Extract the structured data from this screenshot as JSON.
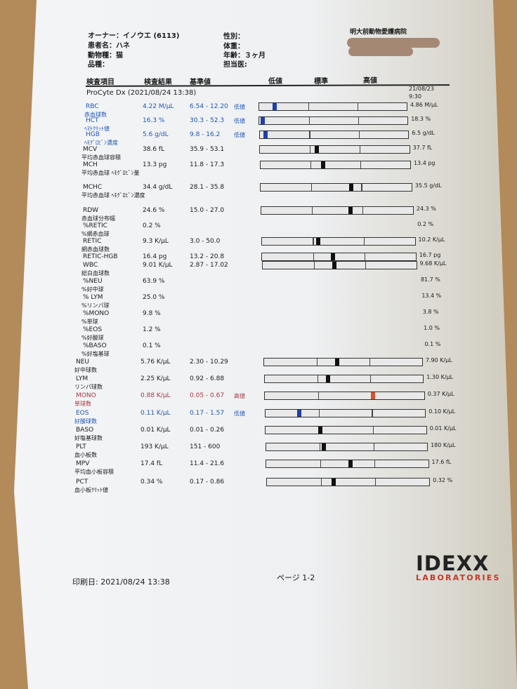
{
  "patient": {
    "owner": "オーナー：イノウエ (6113)",
    "name": "患者名：ハネ",
    "species": "動物種：猫",
    "breed": "品種：",
    "sex": "性別：",
    "weight": "体重：",
    "age": "年齢：３ヶ月",
    "doctor": "担当医:",
    "hospital": "明大前動物愛護病院"
  },
  "columns": {
    "item": "検査項目",
    "result": "検査結果",
    "range": "基準値",
    "low": "低値",
    "normal": "標準",
    "high": "高値"
  },
  "section": {
    "title": "ProCyte Dx (2021/08/24 13:38)",
    "prev_date": "21/08/23",
    "prev_time": "9:30"
  },
  "colors": {
    "low": "#1f56b4",
    "high": "#a33a44",
    "high_marker": "#d9532c",
    "normal_marker": "#111111"
  },
  "rows": [
    {
      "name": "RBC",
      "jp": "赤血球数",
      "result": "4.22 M/µL",
      "range": "6.54 - 12.20",
      "flag": "低値",
      "status": "low",
      "marker": 0.105,
      "prev": "4.86 M/µL"
    },
    {
      "name": "HCT",
      "jp": "ﾍﾏﾄｸﾘｯﾄ値",
      "result": "16.3 %",
      "range": "30.3 - 52.3",
      "flag": "低値",
      "status": "low",
      "marker": 0.02,
      "prev": "18.3 %"
    },
    {
      "name": "HGB",
      "jp": "ﾍﾓｸﾞﾛﾋﾞﾝ濃度",
      "result": "5.6 g/dL",
      "range": "9.8 - 16.2",
      "flag": "低値",
      "status": "low",
      "marker": 0.04,
      "prev": "6.5 g/dL"
    },
    {
      "name": "MCV",
      "jp": "平均赤血球容積",
      "result": "38.6 fL",
      "range": "35.9 - 53.1",
      "flag": "",
      "status": "normal",
      "marker": 0.38,
      "prev": "37.7 fL"
    },
    {
      "name": "MCH",
      "jp": "平均赤血球 ﾍﾓｸﾞﾛﾋﾞﾝ量",
      "result": "13.3 pg",
      "range": "11.8 - 17.3",
      "flag": "",
      "status": "normal",
      "marker": 0.42,
      "prev": "13.4 pg"
    },
    {
      "name": "MCHC",
      "jp": "平均赤血球 ﾍﾓｸﾞﾛﾋﾞﾝ濃度",
      "result": "34.4 g/dL",
      "range": "28.1 - 35.8",
      "flag": "",
      "status": "normal",
      "marker": 0.6,
      "prev": "35.5 g/dL"
    },
    {
      "name": "RDW",
      "jp": "赤血球分布幅",
      "result": "24.6 %",
      "range": "15.0 - 27.0",
      "flag": "",
      "status": "normal",
      "marker": 0.59,
      "prev": "24.3 %"
    },
    {
      "name": "%RETIC",
      "jp": "%網赤血球",
      "result": "0.2 %",
      "range": "",
      "flag": "",
      "status": "none",
      "prev": "0.2 %"
    },
    {
      "name": "RETIC",
      "jp": "網赤血球数",
      "result": "9.3 K/µL",
      "range": "3.0 - 50.0",
      "flag": "",
      "status": "normal",
      "marker": 0.37,
      "prev": "10.2 K/µL"
    },
    {
      "name": "RETIC-HGB",
      "jp": "",
      "result": "16.4 pg",
      "range": "13.2 - 20.8",
      "flag": "",
      "status": "normal",
      "marker": 0.46,
      "prev": "16.7 pg"
    },
    {
      "name": "WBC",
      "jp": "総白血球数",
      "result": "9.01 K/µL",
      "range": "2.87 - 17.02",
      "flag": "",
      "status": "normal",
      "marker": 0.47,
      "prev": "9.68 K/µL"
    },
    {
      "name": "%NEU",
      "jp": "%好中球",
      "result": "63.9 %",
      "range": "",
      "flag": "",
      "status": "none",
      "prev": "81.7 %"
    },
    {
      "name": "% LYM",
      "jp": "%リンパ球",
      "result": "25.0 %",
      "range": "",
      "flag": "",
      "status": "none",
      "prev": "13.4 %"
    },
    {
      "name": "%MONO",
      "jp": "%単球",
      "result": "9.8 %",
      "range": "",
      "flag": "",
      "status": "none",
      "prev": "3.8 %"
    },
    {
      "name": "%EOS",
      "jp": "%好酸球",
      "result": "1.2 %",
      "range": "",
      "flag": "",
      "status": "none",
      "prev": "1.0 %"
    },
    {
      "name": "%BASO",
      "jp": "%好塩基球",
      "result": "0.1 %",
      "range": "",
      "flag": "",
      "status": "none",
      "prev": "0.1 %"
    },
    {
      "name": "NEU",
      "jp": "好中球数",
      "result": "5.76 K/µL",
      "range": "2.30 - 10.29",
      "flag": "",
      "status": "normal",
      "marker": 0.46,
      "prev": "7.90 K/µL"
    },
    {
      "name": "LYM",
      "jp": "リンパ球数",
      "result": "2.25 K/µL",
      "range": "0.92 - 6.88",
      "flag": "",
      "status": "normal",
      "marker": 0.4,
      "prev": "1.30 K/µL"
    },
    {
      "name": "MONO",
      "jp": "単球数",
      "result": "0.88 K/µL",
      "range": "0.05 - 0.67",
      "flag": "高値",
      "status": "high",
      "marker": 0.68,
      "prev": "0.37 K/µL"
    },
    {
      "name": "EOS",
      "jp": "好酸球数",
      "result": "0.11 K/µL",
      "range": "0.17 - 1.57",
      "flag": "低値",
      "status": "low",
      "marker": 0.21,
      "prev": "0.10 K/µL"
    },
    {
      "name": "BASO",
      "jp": "好塩基球数",
      "result": "0.01 K/µL",
      "range": "0.01 - 0.26",
      "flag": "",
      "status": "normal",
      "marker": 0.34,
      "prev": "0.01 K/µL"
    },
    {
      "name": "PLT",
      "jp": "血小板数",
      "result": "193 K/µL",
      "range": "151 - 600",
      "flag": "",
      "status": "normal",
      "marker": 0.36,
      "prev": "180 K/µL"
    },
    {
      "name": "MPV",
      "jp": "平均血小板容積",
      "result": "17.4 fL",
      "range": "11.4 - 21.6",
      "flag": "",
      "status": "normal",
      "marker": 0.52,
      "prev": "17.6 fL"
    },
    {
      "name": "PCT",
      "jp": "血小板ｸﾘｯﾄ値",
      "result": "0.34 %",
      "range": "0.17 - 0.86",
      "flag": "",
      "status": "normal",
      "marker": 0.41,
      "prev": "0.32 %"
    }
  ],
  "footer": {
    "printed": "印刷日: 2021/08/24 13:38",
    "page": "ページ 1-2"
  },
  "logo": {
    "brand": "IDEXX",
    "sub": "LABORATORIES"
  }
}
